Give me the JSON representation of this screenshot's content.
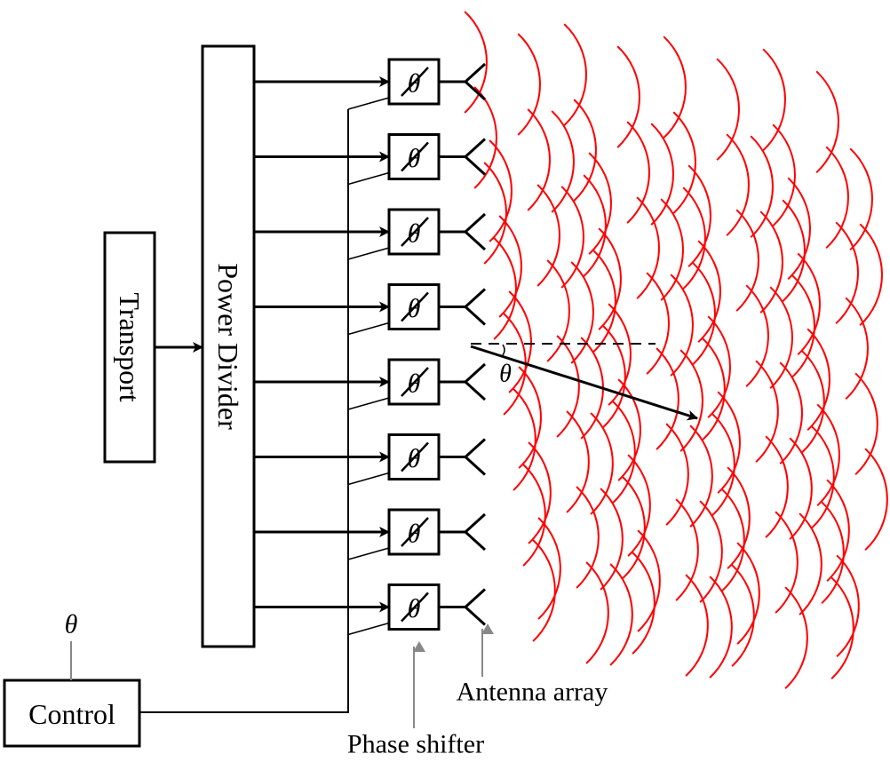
{
  "diagram": {
    "transport_label": "Transport",
    "power_divider_label": "Power Divider",
    "control_label": "Control",
    "control_input_symbol": "θ",
    "phase_symbol": "θ",
    "steering_angle_symbol": "θ",
    "antenna_array_label": "Antenna array",
    "phase_shifter_label": "Phase shifter",
    "element_count": 8,
    "colors": {
      "wavefront": "#ff0000",
      "lines": "#000000",
      "annotation_arrow": "#888888"
    }
  }
}
